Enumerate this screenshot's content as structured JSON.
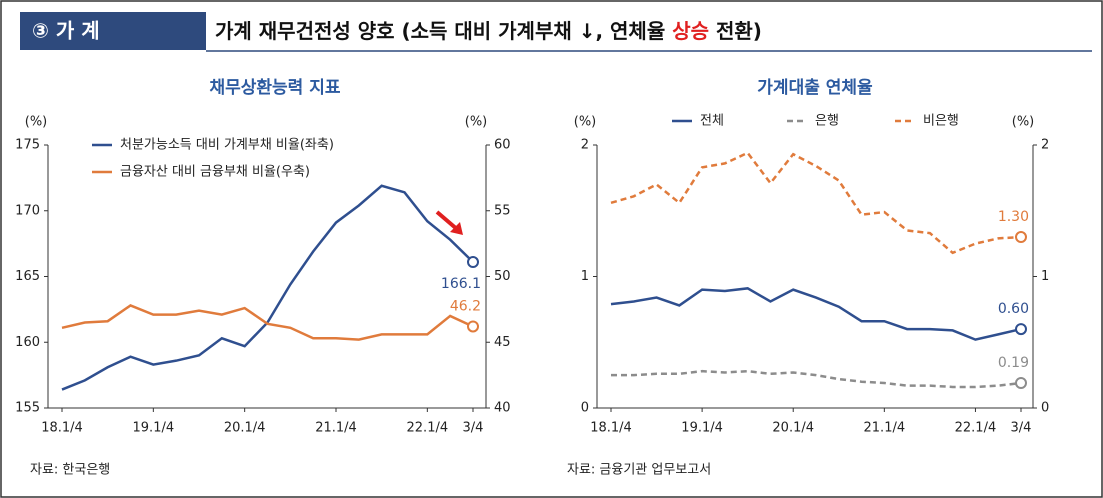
{
  "header": {
    "badge": "③ 가 계",
    "title_parts": [
      "가계 재무건전성 양호 (소득 대비 가계부채 ↓, 연체율 ",
      "상승",
      " 전환)"
    ]
  },
  "chart_data": [
    {
      "type": "line",
      "title": "채무상환능력 지표",
      "y_unit": "(%)",
      "y2_unit": "(%)",
      "source": "자료: 한국은행",
      "legend": "upper left",
      "grid": false,
      "categories": [
        "18.1/4",
        null,
        null,
        null,
        "19.1/4",
        null,
        null,
        null,
        "20.1/4",
        null,
        null,
        null,
        "21.1/4",
        null,
        null,
        null,
        "22.1/4",
        null,
        "3/4"
      ],
      "ylim": [
        155,
        175
      ],
      "yticks": [
        155,
        160,
        165,
        170,
        175
      ],
      "y2lim": [
        40,
        60
      ],
      "y2ticks": [
        40,
        45,
        50,
        55,
        60
      ],
      "series": [
        {
          "name": "처분가능소득 대비 가계부채 비율(좌축)",
          "color": "#2f4f8f",
          "style": "solid",
          "values": [
            156.4,
            157.1,
            158.1,
            158.9,
            158.3,
            158.6,
            159.0,
            160.3,
            159.7,
            161.5,
            164.4,
            166.9,
            169.1,
            170.4,
            171.9,
            171.4,
            169.2,
            167.8,
            166.1
          ],
          "value_labels": [
            null,
            null,
            null,
            null,
            null,
            null,
            null,
            null,
            null,
            null,
            null,
            null,
            null,
            null,
            null,
            null,
            null,
            null,
            "166.1"
          ]
        },
        {
          "name": "금융자산 대비 금융부채 비율(우축)",
          "color": "#e07b3c",
          "style": "solid",
          "axis": "y2",
          "values": [
            46.1,
            46.5,
            46.6,
            47.8,
            47.1,
            47.1,
            47.4,
            47.1,
            47.6,
            46.4,
            46.1,
            45.3,
            45.3,
            45.2,
            45.6,
            45.6,
            45.6,
            47.0,
            46.2
          ],
          "value_labels": [
            null,
            null,
            null,
            null,
            null,
            null,
            null,
            null,
            null,
            null,
            null,
            null,
            null,
            null,
            null,
            null,
            null,
            null,
            "46.2"
          ]
        }
      ]
    },
    {
      "type": "line",
      "title": "가계대출 연체율",
      "y_unit": "(%)",
      "y2_unit": "(%)",
      "source": "자료: 금융기관 업무보고서",
      "legend": "top",
      "grid": false,
      "categories": [
        "18.1/4",
        null,
        null,
        null,
        "19.1/4",
        null,
        null,
        null,
        "20.1/4",
        null,
        null,
        null,
        "21.1/4",
        null,
        null,
        null,
        "22.1/4",
        null,
        "3/4"
      ],
      "ylim": [
        0,
        2
      ],
      "yticks": [
        0,
        1,
        2
      ],
      "y2lim": [
        0,
        2
      ],
      "y2ticks": [
        0,
        1,
        2
      ],
      "series": [
        {
          "name": "전체",
          "color": "#2f4f8f",
          "style": "solid",
          "values": [
            0.79,
            0.81,
            0.84,
            0.78,
            0.9,
            0.89,
            0.91,
            0.81,
            0.9,
            0.84,
            0.77,
            0.66,
            0.66,
            0.6,
            0.6,
            0.59,
            0.52,
            0.56,
            0.6
          ],
          "value_labels": [
            null,
            null,
            null,
            null,
            null,
            null,
            null,
            null,
            null,
            null,
            null,
            null,
            null,
            null,
            null,
            null,
            null,
            null,
            "0.60"
          ]
        },
        {
          "name": "은행",
          "color": "#8c8c8c",
          "style": "dashed",
          "values": [
            0.25,
            0.25,
            0.26,
            0.26,
            0.28,
            0.27,
            0.28,
            0.26,
            0.27,
            0.25,
            0.22,
            0.2,
            0.19,
            0.17,
            0.17,
            0.16,
            0.16,
            0.17,
            0.19
          ],
          "value_labels": [
            null,
            null,
            null,
            null,
            null,
            null,
            null,
            null,
            null,
            null,
            null,
            null,
            null,
            null,
            null,
            null,
            null,
            null,
            "0.19"
          ]
        },
        {
          "name": "비은행",
          "color": "#e07b3c",
          "style": "dashed",
          "values": [
            1.56,
            1.61,
            1.7,
            1.56,
            1.83,
            1.86,
            1.94,
            1.71,
            1.93,
            1.84,
            1.73,
            1.47,
            1.49,
            1.35,
            1.33,
            1.18,
            1.25,
            1.29,
            1.3
          ],
          "value_labels": [
            null,
            null,
            null,
            null,
            null,
            null,
            null,
            null,
            null,
            null,
            null,
            null,
            null,
            null,
            null,
            null,
            null,
            null,
            "1.30"
          ]
        }
      ]
    }
  ]
}
